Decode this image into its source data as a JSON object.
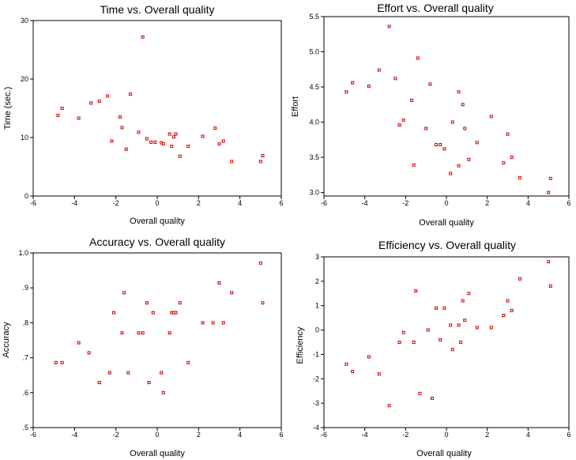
{
  "chart_data": [
    {
      "type": "scatter",
      "title": "Time vs. Overall quality",
      "xlabel": "Overall quality",
      "ylabel": "Time (sec.)",
      "xlim": [
        -6,
        6
      ],
      "ylim": [
        0,
        30
      ],
      "xticks": [
        "-6",
        "-4",
        "-2",
        "0",
        "2",
        "4",
        "6"
      ],
      "yticks": [
        "0",
        "10",
        "20",
        "30"
      ],
      "color": "#cc0000",
      "x": [
        -4.8,
        -4.6,
        -3.8,
        -3.2,
        -2.8,
        -2.4,
        -2.2,
        -1.8,
        -1.7,
        -1.5,
        -1.3,
        -0.9,
        -0.7,
        -0.5,
        -0.3,
        -0.1,
        0.2,
        0.3,
        0.6,
        0.7,
        0.8,
        0.9,
        1.1,
        1.5,
        2.2,
        2.8,
        3.0,
        3.2,
        3.6,
        5.0,
        5.1
      ],
      "y": [
        13.8,
        15.0,
        13.3,
        15.9,
        16.2,
        17.1,
        9.4,
        13.5,
        11.7,
        8.0,
        17.4,
        10.9,
        27.2,
        9.8,
        9.2,
        9.2,
        9.1,
        8.9,
        10.6,
        8.5,
        10.1,
        10.6,
        6.8,
        8.5,
        10.2,
        11.6,
        8.9,
        9.4,
        5.9,
        5.9,
        6.9
      ]
    },
    {
      "type": "scatter",
      "title": "Effort vs. Overall quality",
      "xlabel": "Overall quality",
      "ylabel": "Effort",
      "xlim": [
        -6,
        6
      ],
      "ylim": [
        2.95,
        5.5
      ],
      "xticks": [
        "-6",
        "-4",
        "-2",
        "0",
        "2",
        "4",
        "6"
      ],
      "yticks": [
        "3.0",
        "3.5",
        "4.0",
        "4.5",
        "5.0",
        "5.5"
      ],
      "color": "#cc0000",
      "x": [
        -4.9,
        -4.6,
        -3.8,
        -3.3,
        -2.8,
        -2.5,
        -2.3,
        -2.1,
        -1.7,
        -1.6,
        -1.4,
        -1.0,
        -0.8,
        -0.5,
        -0.3,
        -0.1,
        0.2,
        0.3,
        0.6,
        0.6,
        0.8,
        0.9,
        1.1,
        1.5,
        2.2,
        2.8,
        3.0,
        3.2,
        3.6,
        5.0,
        5.1
      ],
      "y": [
        4.43,
        4.56,
        4.51,
        4.74,
        5.36,
        4.62,
        3.96,
        4.03,
        4.31,
        3.39,
        4.91,
        3.91,
        4.54,
        3.68,
        3.68,
        3.62,
        3.27,
        4.0,
        3.38,
        4.43,
        4.25,
        3.91,
        3.47,
        3.71,
        4.08,
        3.42,
        3.83,
        3.5,
        3.21,
        3.0,
        3.2
      ]
    },
    {
      "type": "scatter",
      "title": "Accuracy vs. Overall quality",
      "xlabel": "Overall quality",
      "ylabel": "Accuracy",
      "xlim": [
        -6,
        6
      ],
      "ylim": [
        0.5,
        1.0
      ],
      "xticks": [
        "-6",
        "-4",
        "-2",
        "0",
        "2",
        "4",
        "6"
      ],
      "yticks": [
        ".5",
        ".6",
        ".7",
        ".8",
        ".9",
        "1.0"
      ],
      "color": "#cc0000",
      "x": [
        -4.9,
        -4.6,
        -3.8,
        -3.3,
        -2.8,
        -2.3,
        -2.1,
        -1.7,
        -1.6,
        -1.4,
        -0.9,
        -0.7,
        -0.5,
        -0.4,
        -0.2,
        0.2,
        0.3,
        0.6,
        0.7,
        0.8,
        0.9,
        1.1,
        1.5,
        2.2,
        2.7,
        3.0,
        3.2,
        3.6,
        5.0,
        5.1
      ],
      "y": [
        0.686,
        0.686,
        0.743,
        0.714,
        0.629,
        0.657,
        0.829,
        0.771,
        0.886,
        0.657,
        0.771,
        0.771,
        0.857,
        0.629,
        0.829,
        0.657,
        0.6,
        0.771,
        0.829,
        0.829,
        0.829,
        0.857,
        0.686,
        0.8,
        0.8,
        0.914,
        0.8,
        0.886,
        0.971,
        0.857
      ]
    },
    {
      "type": "scatter",
      "title": "Efficiency vs. Overall quality",
      "xlabel": "Overall quality",
      "ylabel": "Efficiency",
      "xlim": [
        -6,
        6
      ],
      "ylim": [
        -4,
        3
      ],
      "xticks": [
        "-6",
        "-4",
        "-2",
        "0",
        "2",
        "4",
        "6"
      ],
      "yticks": [
        "-4",
        "-3",
        "-2",
        "-1",
        "0",
        "1",
        "2",
        "3"
      ],
      "color": "#cc0000",
      "x": [
        -4.9,
        -4.6,
        -3.8,
        -3.3,
        -2.8,
        -2.3,
        -2.1,
        -1.6,
        -1.5,
        -1.3,
        -0.9,
        -0.7,
        -0.5,
        -0.3,
        -0.1,
        0.2,
        0.3,
        0.6,
        0.7,
        0.8,
        0.9,
        1.1,
        1.5,
        2.2,
        2.8,
        3.0,
        3.2,
        3.6,
        5.0,
        5.1
      ],
      "y": [
        -1.4,
        -1.7,
        -1.1,
        -1.8,
        -3.1,
        -0.5,
        -0.1,
        -0.5,
        1.6,
        -2.6,
        0.0,
        -2.8,
        0.9,
        -0.4,
        0.9,
        0.2,
        -0.8,
        0.2,
        -0.5,
        1.2,
        0.4,
        1.5,
        0.1,
        0.1,
        0.6,
        1.2,
        0.8,
        2.1,
        2.8,
        1.8
      ]
    }
  ]
}
